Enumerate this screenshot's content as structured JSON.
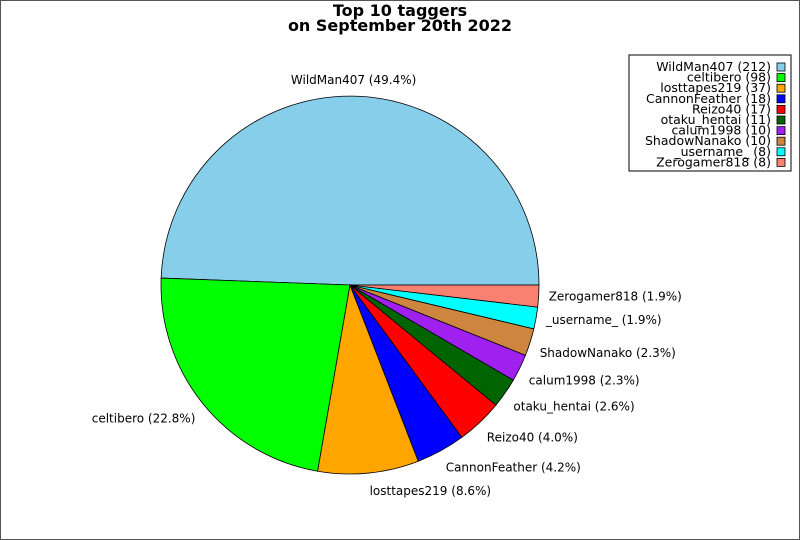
{
  "chart_data": {
    "type": "pie",
    "title": "Top 10 taggers",
    "subtitle": "on September 20th 2022",
    "slices": [
      {
        "name": "WildMan407",
        "value": 212,
        "percent": "49.4%",
        "color": "#87ceeb"
      },
      {
        "name": "celtibero",
        "value": 98,
        "percent": "22.8%",
        "color": "#00ff00"
      },
      {
        "name": "losttapes219",
        "value": 37,
        "percent": "8.6%",
        "color": "#ffa500"
      },
      {
        "name": "CannonFeather",
        "value": 18,
        "percent": "4.2%",
        "color": "#0000ff"
      },
      {
        "name": "Reizo40",
        "value": 17,
        "percent": "4.0%",
        "color": "#ff0000"
      },
      {
        "name": "otaku_hentai",
        "value": 11,
        "percent": "2.6%",
        "color": "#006400"
      },
      {
        "name": "calum1998",
        "value": 10,
        "percent": "2.3%",
        "color": "#a020f0"
      },
      {
        "name": "ShadowNanako",
        "value": 10,
        "percent": "2.3%",
        "color": "#cd853f"
      },
      {
        "name": "_username_",
        "value": 8,
        "percent": "1.9%",
        "color": "#00ffff"
      },
      {
        "name": "Zerogamer818",
        "value": 8,
        "percent": "1.9%",
        "color": "#fa8072"
      }
    ],
    "legend_position": "top-right",
    "start_angle": "0 degrees (3 o'clock)",
    "direction": "counterclockwise"
  }
}
